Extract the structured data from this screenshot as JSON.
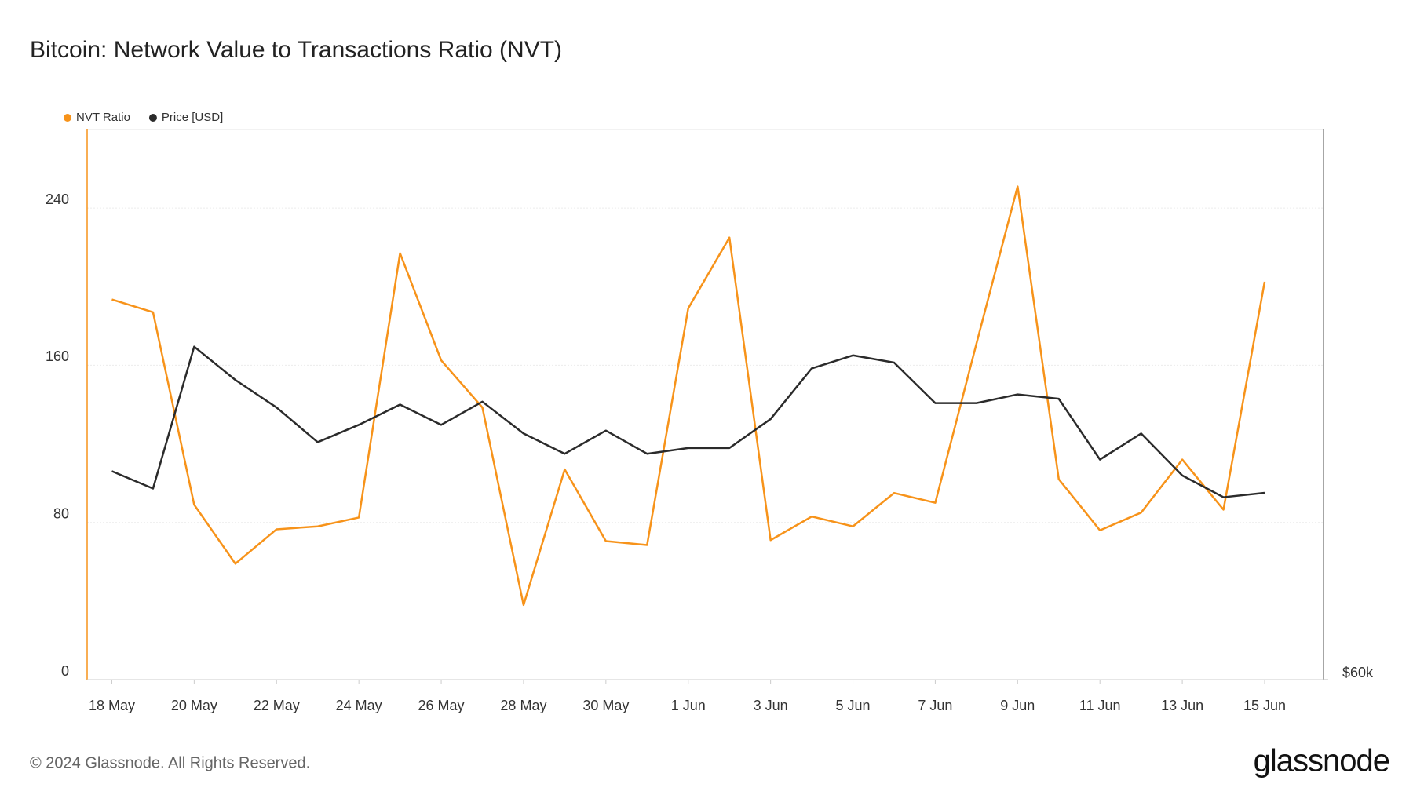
{
  "chart_data": {
    "type": "line",
    "title": "Bitcoin: Network Value to Transactions Ratio (NVT)",
    "categories": [
      "18 May",
      null,
      "20 May",
      null,
      "22 May",
      null,
      "24 May",
      null,
      "26 May",
      null,
      "28 May",
      null,
      "30 May",
      null,
      "1 Jun",
      null,
      "3 Jun",
      null,
      "5 Jun",
      null,
      "7 Jun",
      null,
      "9 Jun",
      null,
      "11 Jun",
      null,
      "13 Jun",
      null,
      "15 Jun"
    ],
    "series": [
      {
        "name": "NVT Ratio",
        "color": "#f7931a",
        "values": [
          193.5,
          187,
          89,
          59,
          76.5,
          78,
          82.5,
          217,
          162.5,
          138.5,
          38,
          107,
          70.5,
          68.5,
          189,
          225,
          71,
          83,
          78,
          95,
          90,
          171,
          251,
          102,
          76,
          85,
          112,
          86.5,
          202.5
        ]
      },
      {
        "name": "Price [USD]",
        "color": "#2b2b2b",
        "axis": "y2",
        "values": [
          67200,
          66600,
          71500,
          70350,
          69400,
          68200,
          68800,
          69500,
          68800,
          69600,
          68500,
          67800,
          68600,
          67800,
          68000,
          68000,
          69000,
          70750,
          71200,
          70950,
          69550,
          69550,
          69850,
          69700,
          67600,
          68500,
          67050,
          66300,
          66450
        ]
      }
    ],
    "ylim": [
      0,
      280
    ],
    "yticks": [
      0,
      80,
      160,
      240
    ],
    "y2lim": [
      60000,
      79000
    ],
    "y2ticks": [
      {
        "value": 60000,
        "label": "$60k"
      }
    ],
    "grid": true,
    "footer": "© 2024 Glassnode. All Rights Reserved.",
    "brand": "glassnode"
  }
}
